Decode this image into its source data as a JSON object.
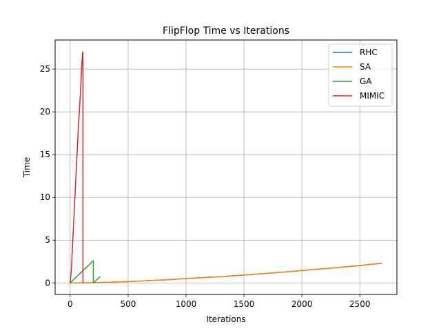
{
  "chart_data": {
    "type": "line",
    "title": "FlipFlop Time vs Iterations",
    "xlabel": "Iterations",
    "ylabel": "Time",
    "xlim": [
      -130,
      2820
    ],
    "ylim": [
      -1.35,
      28.4
    ],
    "xticks": [
      0,
      500,
      1000,
      1500,
      2000,
      2500
    ],
    "yticks": [
      0,
      5,
      10,
      15,
      20,
      25
    ],
    "grid": true,
    "legend_position": "top-right",
    "series": [
      {
        "name": "RHC",
        "color": "#1f77b4",
        "x": [
          0,
          200,
          500,
          800,
          1000,
          1300,
          1500,
          1800,
          2000,
          2300,
          2500,
          2690
        ],
        "y": [
          0,
          0.02,
          0.15,
          0.34,
          0.5,
          0.74,
          0.92,
          1.22,
          1.44,
          1.78,
          2.04,
          2.3
        ]
      },
      {
        "name": "SA",
        "color": "#ff7f0e",
        "x": [
          0,
          200,
          500,
          800,
          1000,
          1300,
          1500,
          1800,
          2000,
          2300,
          2500,
          2690
        ],
        "y": [
          0,
          0.02,
          0.15,
          0.34,
          0.5,
          0.74,
          0.92,
          1.22,
          1.44,
          1.78,
          2.04,
          2.3
        ]
      },
      {
        "name": "GA",
        "color": "#2ca02c",
        "x": [
          0,
          200,
          200,
          260
        ],
        "y": [
          0,
          2.6,
          0,
          0.75
        ]
      },
      {
        "name": "MIMIC",
        "color": "#d62728",
        "x": [
          0,
          10,
          30,
          50,
          70,
          90,
          100,
          108,
          110,
          110
        ],
        "y": [
          0,
          1.5,
          7,
          12.5,
          18,
          22.5,
          25.5,
          27,
          27,
          0
        ]
      }
    ]
  }
}
